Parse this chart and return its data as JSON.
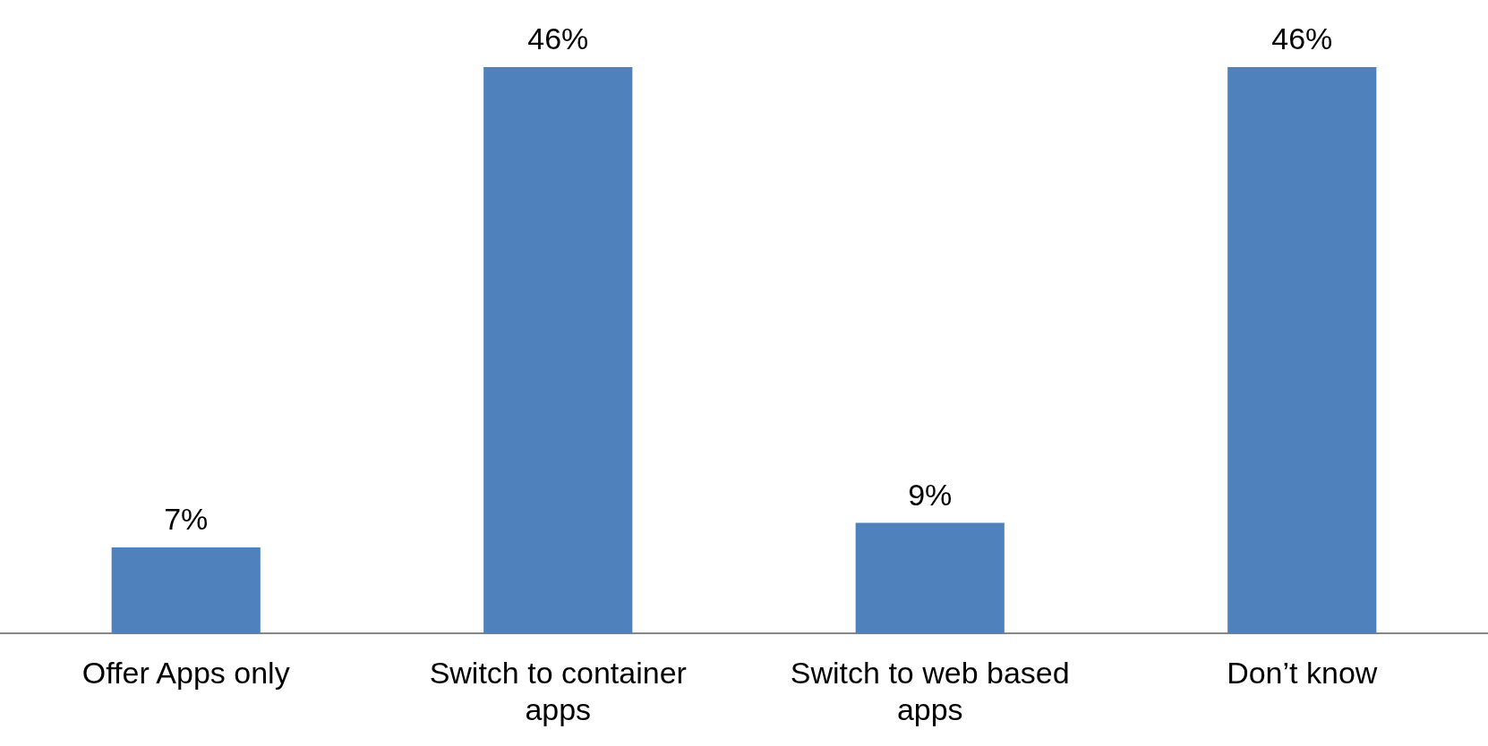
{
  "chart_data": {
    "type": "bar",
    "categories": [
      "Offer Apps only",
      "Switch to container apps",
      "Switch to web based apps",
      "Don’t know"
    ],
    "values": [
      7,
      46,
      9,
      46
    ],
    "color": "#4f81bd",
    "value_labels": [
      "7%",
      "46%",
      "9%",
      "46%"
    ]
  }
}
